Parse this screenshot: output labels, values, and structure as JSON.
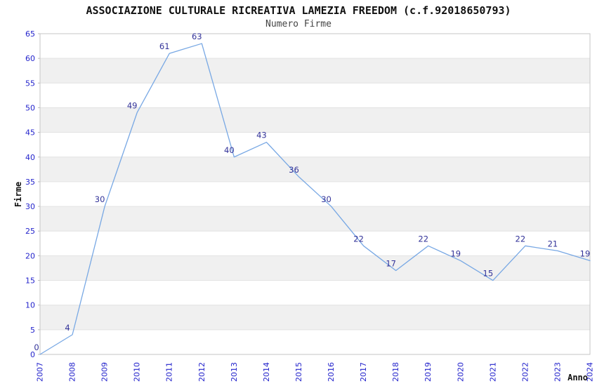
{
  "header": {
    "title": "ASSOCIAZIONE CULTURALE RICREATIVA LAMEZIA FREEDOM (c.f.92018650793)",
    "subtitle": "Numero Firme"
  },
  "chart_data": {
    "type": "line",
    "title": "ASSOCIAZIONE CULTURALE RICREATIVA LAMEZIA FREEDOM (c.f.92018650793)",
    "subtitle": "Numero Firme",
    "xlabel": "Anno",
    "ylabel": "Firme",
    "categories": [
      "2007",
      "2008",
      "2009",
      "2010",
      "2011",
      "2012",
      "2013",
      "2014",
      "2015",
      "2016",
      "2017",
      "2018",
      "2019",
      "2020",
      "2021",
      "2022",
      "2023",
      "2024"
    ],
    "values": [
      0,
      4,
      30,
      49,
      61,
      63,
      40,
      43,
      36,
      30,
      22,
      17,
      22,
      19,
      15,
      22,
      21,
      19
    ],
    "ylim": [
      0,
      65
    ],
    "ytick_step": 5,
    "yticks": [
      0,
      5,
      10,
      15,
      20,
      25,
      30,
      35,
      40,
      45,
      50,
      55,
      60,
      65
    ],
    "grid": true,
    "legend": "none",
    "colors": {
      "line": "#78a8e4",
      "tick_label": "#2424cc",
      "data_label": "#333399",
      "band": "#f0f0f0",
      "gridline": "#e2e2e2",
      "plot_border": "#c6c6c6",
      "axis_tick": "#bbbbbb",
      "background": "#ffffff"
    }
  }
}
